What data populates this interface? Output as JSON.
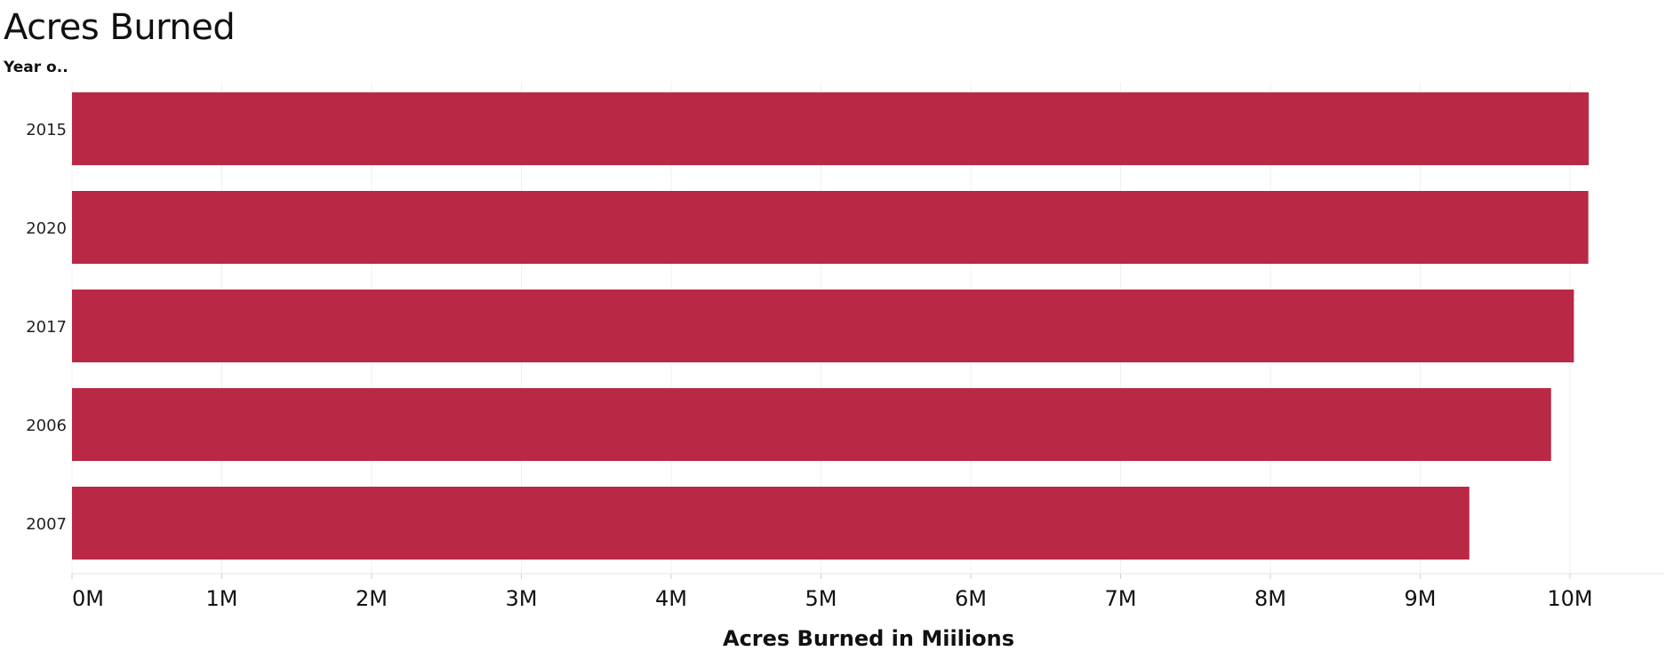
{
  "chart_data": {
    "type": "bar",
    "orientation": "horizontal",
    "title": "Acres Burned",
    "row_header": "Year o..",
    "xlabel": "Acres Burned in Miilions",
    "categories": [
      "2015",
      "2020",
      "2017",
      "2006",
      "2007"
    ],
    "values": [
      10125149,
      10122336,
      10026086,
      9873745,
      9328045
    ],
    "xlim": [
      0,
      10600000
    ],
    "ticks": [
      {
        "value": 0,
        "label": "0M"
      },
      {
        "value": 1000000,
        "label": "1M"
      },
      {
        "value": 2000000,
        "label": "2M"
      },
      {
        "value": 3000000,
        "label": "3M"
      },
      {
        "value": 4000000,
        "label": "4M"
      },
      {
        "value": 5000000,
        "label": "5M"
      },
      {
        "value": 6000000,
        "label": "6M"
      },
      {
        "value": 7000000,
        "label": "7M"
      },
      {
        "value": 8000000,
        "label": "8M"
      },
      {
        "value": 9000000,
        "label": "9M"
      },
      {
        "value": 10000000,
        "label": "10M"
      }
    ],
    "bar_color": "#b92844",
    "grid": true
  }
}
